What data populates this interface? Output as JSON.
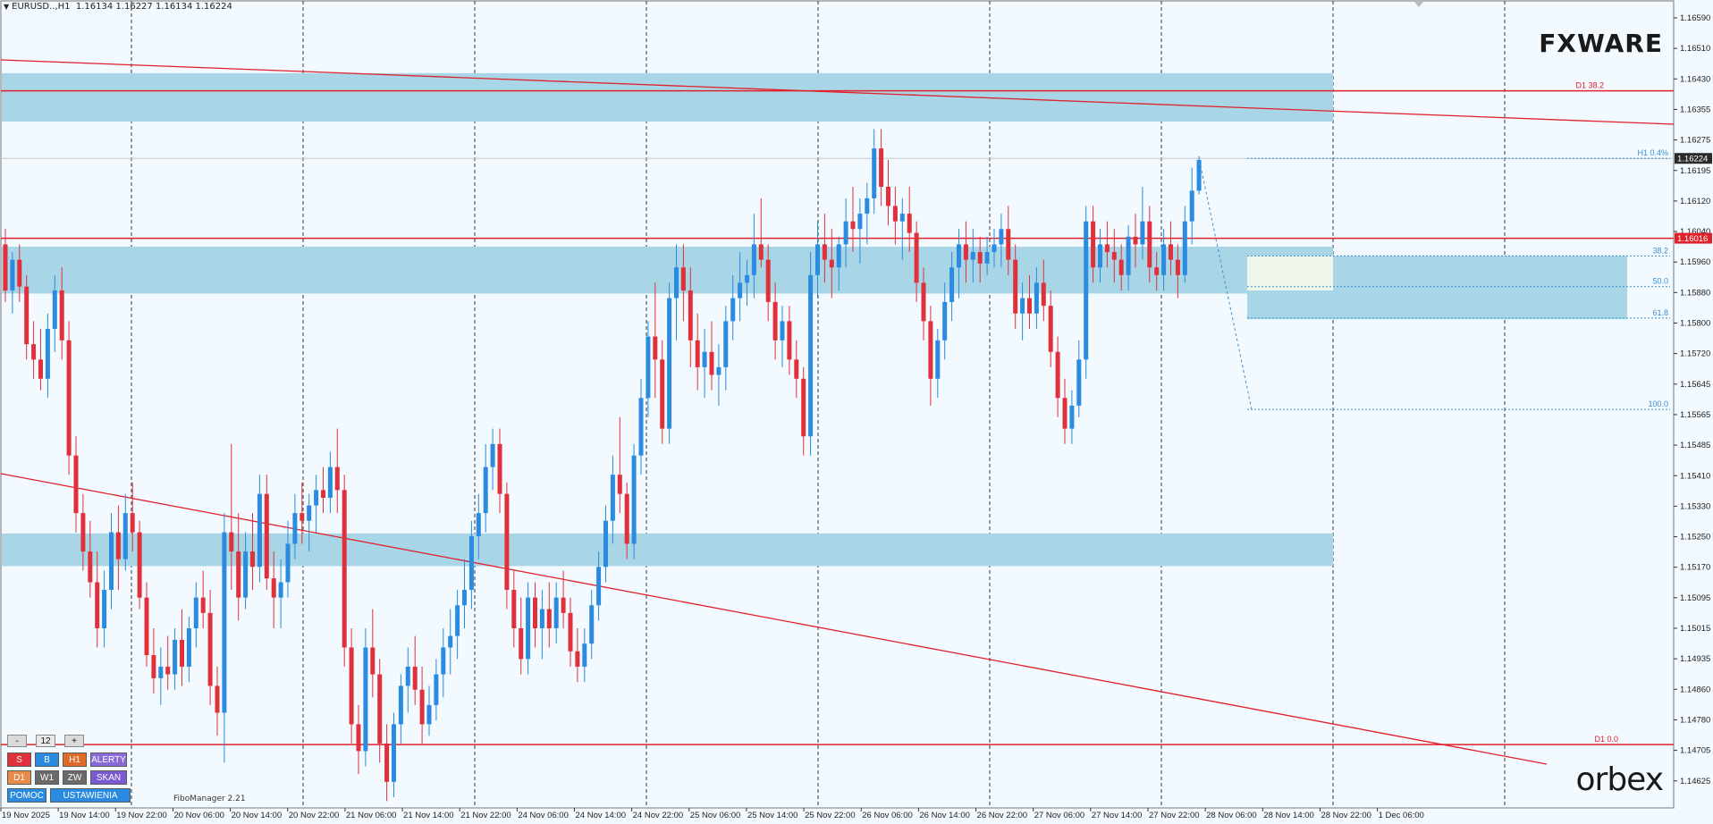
{
  "header": {
    "symbol": "EURUSD..,H1",
    "ohlc": "1.16134 1.16227 1.16134 1.16224"
  },
  "logos": {
    "top_right": "FXWARE",
    "bottom_right": "orbex"
  },
  "price_axis": {
    "labels": [
      "1.16590",
      "1.16510",
      "1.16430",
      "1.16355",
      "1.16275",
      "1.16195",
      "1.16120",
      "1.16040",
      "1.15960",
      "1.15880",
      "1.15800",
      "1.15720",
      "1.15645",
      "1.15565",
      "1.15485",
      "1.15410",
      "1.15330",
      "1.15250",
      "1.15170",
      "1.15095",
      "1.15015",
      "1.14935",
      "1.14860",
      "1.14780",
      "1.14705",
      "1.14625"
    ],
    "current_price": "1.16224",
    "current_price_color": "#2a2a2a",
    "level_price": "1.16016",
    "level_color": "#e0202a"
  },
  "time_axis": {
    "labels": [
      "19 Nov 2025",
      "19 Nov 14:00",
      "19 Nov 22:00",
      "20 Nov 06:00",
      "20 Nov 14:00",
      "20 Nov 22:00",
      "21 Nov 06:00",
      "21 Nov 14:00",
      "21 Nov 22:00",
      "24 Nov 06:00",
      "24 Nov 14:00",
      "24 Nov 22:00",
      "25 Nov 06:00",
      "25 Nov 14:00",
      "25 Nov 22:00",
      "26 Nov 06:00",
      "26 Nov 14:00",
      "26 Nov 22:00",
      "27 Nov 06:00",
      "27 Nov 14:00",
      "27 Nov 22:00",
      "28 Nov 06:00",
      "28 Nov 14:00",
      "28 Nov 22:00",
      "1 Dec 06:00"
    ]
  },
  "level_labels": {
    "d1_382": "D1 38.2",
    "h1_04": "H1 0.4%",
    "d1_00": "D1 0.0",
    "fib_382": "38.2",
    "fib_500": "50.0",
    "fib_618": "61.8",
    "fib_100": "100.0"
  },
  "colors": {
    "bull": "#2a8be0",
    "bear": "#e0303c",
    "zone": "#a9d6e6",
    "line": "#e0202a",
    "fib": "#3a8fd0"
  },
  "candles": [
    [
      1.16,
      1.1604,
      1.1585,
      1.1588
    ],
    [
      1.1588,
      1.1598,
      1.1582,
      1.1596
    ],
    [
      1.1596,
      1.16,
      1.1585,
      1.1589
    ],
    [
      1.1589,
      1.1592,
      1.157,
      1.1574
    ],
    [
      1.1574,
      1.158,
      1.1565,
      1.157
    ],
    [
      1.157,
      1.1578,
      1.1562,
      1.1565
    ],
    [
      1.1565,
      1.1582,
      1.156,
      1.1578
    ],
    [
      1.1578,
      1.1592,
      1.1572,
      1.1588
    ],
    [
      1.1588,
      1.1594,
      1.157,
      1.1575
    ],
    [
      1.1575,
      1.158,
      1.154,
      1.1545
    ],
    [
      1.1545,
      1.155,
      1.1525,
      1.153
    ],
    [
      1.153,
      1.1535,
      1.1515,
      1.152
    ],
    [
      1.152,
      1.1528,
      1.1508,
      1.1512
    ],
    [
      1.1512,
      1.152,
      1.1495,
      1.15
    ],
    [
      1.15,
      1.1515,
      1.1495,
      1.151
    ],
    [
      1.151,
      1.153,
      1.1505,
      1.1525
    ],
    [
      1.1525,
      1.1532,
      1.151,
      1.1518
    ],
    [
      1.1518,
      1.1535,
      1.1515,
      1.153
    ],
    [
      1.153,
      1.1538,
      1.152,
      1.1525
    ],
    [
      1.1525,
      1.1528,
      1.1505,
      1.1508
    ],
    [
      1.1508,
      1.1512,
      1.149,
      1.1493
    ],
    [
      1.1493,
      1.15,
      1.1483,
      1.1487
    ],
    [
      1.1487,
      1.1495,
      1.148,
      1.149
    ],
    [
      1.149,
      1.1498,
      1.1484,
      1.1488
    ],
    [
      1.1488,
      1.15,
      1.1484,
      1.1497
    ],
    [
      1.1497,
      1.1505,
      1.1485,
      1.149
    ],
    [
      1.149,
      1.1503,
      1.1486,
      1.15
    ],
    [
      1.15,
      1.1512,
      1.1495,
      1.1508
    ],
    [
      1.1508,
      1.1515,
      1.15,
      1.1504
    ],
    [
      1.1504,
      1.151,
      1.148,
      1.1485
    ],
    [
      1.1485,
      1.149,
      1.1472,
      1.1478
    ],
    [
      1.1478,
      1.153,
      1.1465,
      1.1525
    ],
    [
      1.1525,
      1.1548,
      1.151,
      1.152
    ],
    [
      1.152,
      1.153,
      1.1502,
      1.1508
    ],
    [
      1.1508,
      1.1525,
      1.1505,
      1.152
    ],
    [
      1.152,
      1.153,
      1.151,
      1.1516
    ],
    [
      1.1516,
      1.154,
      1.1512,
      1.1535
    ],
    [
      1.1535,
      1.154,
      1.151,
      1.1513
    ],
    [
      1.1513,
      1.152,
      1.15,
      1.1508
    ],
    [
      1.1508,
      1.1518,
      1.15,
      1.1512
    ],
    [
      1.1512,
      1.1528,
      1.1508,
      1.1522
    ],
    [
      1.1522,
      1.1535,
      1.1518,
      1.153
    ],
    [
      1.153,
      1.1538,
      1.1522,
      1.1528
    ],
    [
      1.1528,
      1.1535,
      1.152,
      1.1532
    ],
    [
      1.1532,
      1.154,
      1.1525,
      1.1536
    ],
    [
      1.1536,
      1.1542,
      1.153,
      1.1534
    ],
    [
      1.1534,
      1.1546,
      1.153,
      1.1542
    ],
    [
      1.1542,
      1.1552,
      1.153,
      1.1536
    ],
    [
      1.1536,
      1.154,
      1.149,
      1.1495
    ],
    [
      1.1495,
      1.15,
      1.147,
      1.1475
    ],
    [
      1.1475,
      1.148,
      1.1462,
      1.1468
    ],
    [
      1.1468,
      1.15,
      1.1464,
      1.1495
    ],
    [
      1.1495,
      1.1505,
      1.1482,
      1.1488
    ],
    [
      1.1488,
      1.1492,
      1.1465,
      1.147
    ],
    [
      1.147,
      1.1475,
      1.1455,
      1.146
    ],
    [
      1.146,
      1.1478,
      1.1456,
      1.1475
    ],
    [
      1.1475,
      1.1488,
      1.147,
      1.1485
    ],
    [
      1.1485,
      1.1495,
      1.1478,
      1.149
    ],
    [
      1.149,
      1.1498,
      1.148,
      1.1484
    ],
    [
      1.1484,
      1.149,
      1.147,
      1.1475
    ],
    [
      1.1475,
      1.1485,
      1.1472,
      1.148
    ],
    [
      1.148,
      1.1492,
      1.1476,
      1.1488
    ],
    [
      1.1488,
      1.15,
      1.1482,
      1.1495
    ],
    [
      1.1495,
      1.1505,
      1.1488,
      1.1498
    ],
    [
      1.1498,
      1.151,
      1.1492,
      1.1506
    ],
    [
      1.1506,
      1.1518,
      1.15,
      1.151
    ],
    [
      1.151,
      1.1528,
      1.1505,
      1.1524
    ],
    [
      1.1524,
      1.1535,
      1.1518,
      1.153
    ],
    [
      1.153,
      1.1548,
      1.1525,
      1.1542
    ],
    [
      1.1542,
      1.1552,
      1.1536,
      1.1548
    ],
    [
      1.1548,
      1.1552,
      1.153,
      1.1535
    ],
    [
      1.1535,
      1.1538,
      1.1505,
      1.151
    ],
    [
      1.151,
      1.1515,
      1.1495,
      1.15
    ],
    [
      1.15,
      1.1508,
      1.1488,
      1.1492
    ],
    [
      1.1492,
      1.1512,
      1.1488,
      1.1508
    ],
    [
      1.1508,
      1.1512,
      1.1495,
      1.15
    ],
    [
      1.15,
      1.151,
      1.1492,
      1.1505
    ],
    [
      1.1505,
      1.1512,
      1.1495,
      1.15
    ],
    [
      1.15,
      1.1512,
      1.1496,
      1.1508
    ],
    [
      1.1508,
      1.1515,
      1.15,
      1.1504
    ],
    [
      1.1504,
      1.1508,
      1.149,
      1.1494
    ],
    [
      1.1494,
      1.15,
      1.1486,
      1.149
    ],
    [
      1.149,
      1.15,
      1.1486,
      1.1496
    ],
    [
      1.1496,
      1.151,
      1.1492,
      1.1506
    ],
    [
      1.1506,
      1.152,
      1.1502,
      1.1516
    ],
    [
      1.1516,
      1.1532,
      1.1512,
      1.1528
    ],
    [
      1.1528,
      1.1545,
      1.1522,
      1.154
    ],
    [
      1.154,
      1.1555,
      1.153,
      1.1535
    ],
    [
      1.1535,
      1.1538,
      1.1518,
      1.1522
    ],
    [
      1.1522,
      1.1548,
      1.1518,
      1.1545
    ],
    [
      1.1545,
      1.1565,
      1.154,
      1.156
    ],
    [
      1.156,
      1.158,
      1.1555,
      1.1576
    ],
    [
      1.1576,
      1.159,
      1.156,
      1.157
    ],
    [
      1.157,
      1.1575,
      1.1548,
      1.1552
    ],
    [
      1.1552,
      1.159,
      1.1548,
      1.1586
    ],
    [
      1.1586,
      1.16,
      1.1575,
      1.1594
    ],
    [
      1.1594,
      1.16,
      1.158,
      1.1588
    ],
    [
      1.1588,
      1.1594,
      1.1568,
      1.1575
    ],
    [
      1.1575,
      1.1582,
      1.1562,
      1.1568
    ],
    [
      1.1568,
      1.1578,
      1.156,
      1.1572
    ],
    [
      1.1572,
      1.158,
      1.1562,
      1.1566
    ],
    [
      1.1566,
      1.1574,
      1.1558,
      1.1568
    ],
    [
      1.1568,
      1.1584,
      1.1562,
      1.158
    ],
    [
      1.158,
      1.1592,
      1.1575,
      1.1586
    ],
    [
      1.1586,
      1.1598,
      1.158,
      1.159
    ],
    [
      1.159,
      1.1596,
      1.1584,
      1.1592
    ],
    [
      1.1592,
      1.1608,
      1.1586,
      1.16
    ],
    [
      1.16,
      1.1612,
      1.1594,
      1.1596
    ],
    [
      1.1596,
      1.16,
      1.158,
      1.1585
    ],
    [
      1.1585,
      1.159,
      1.157,
      1.1575
    ],
    [
      1.1575,
      1.1584,
      1.1568,
      1.158
    ],
    [
      1.158,
      1.1584,
      1.1566,
      1.157
    ],
    [
      1.157,
      1.1575,
      1.156,
      1.1565
    ],
    [
      1.1565,
      1.1568,
      1.1545,
      1.155
    ],
    [
      1.155,
      1.1598,
      1.1545,
      1.1592
    ],
    [
      1.1592,
      1.1606,
      1.1586,
      1.16
    ],
    [
      1.16,
      1.1608,
      1.159,
      1.1596
    ],
    [
      1.1596,
      1.1604,
      1.1586,
      1.1594
    ],
    [
      1.1594,
      1.1602,
      1.1588,
      1.16
    ],
    [
      1.16,
      1.1612,
      1.1594,
      1.1606
    ],
    [
      1.1606,
      1.1615,
      1.1598,
      1.1604
    ],
    [
      1.1604,
      1.1612,
      1.1595,
      1.1608
    ],
    [
      1.1608,
      1.1616,
      1.16,
      1.1612
    ],
    [
      1.1612,
      1.163,
      1.1608,
      1.1625
    ],
    [
      1.1625,
      1.163,
      1.161,
      1.1615
    ],
    [
      1.1615,
      1.1622,
      1.1605,
      1.161
    ],
    [
      1.161,
      1.1615,
      1.16,
      1.1606
    ],
    [
      1.1606,
      1.1612,
      1.1596,
      1.1608
    ],
    [
      1.1608,
      1.1615,
      1.1598,
      1.1603
    ],
    [
      1.1603,
      1.1606,
      1.1585,
      1.159
    ],
    [
      1.159,
      1.1594,
      1.1575,
      1.158
    ],
    [
      1.158,
      1.1584,
      1.1558,
      1.1565
    ],
    [
      1.1565,
      1.1578,
      1.156,
      1.1575
    ],
    [
      1.1575,
      1.159,
      1.157,
      1.1585
    ],
    [
      1.1585,
      1.1598,
      1.158,
      1.1594
    ],
    [
      1.1594,
      1.1604,
      1.1586,
      1.16
    ],
    [
      1.16,
      1.1606,
      1.159,
      1.1596
    ],
    [
      1.1596,
      1.1604,
      1.159,
      1.1598
    ],
    [
      1.1598,
      1.1602,
      1.159,
      1.1595
    ],
    [
      1.1595,
      1.1602,
      1.1592,
      1.1598
    ],
    [
      1.1598,
      1.1604,
      1.1594,
      1.16
    ],
    [
      1.16,
      1.1608,
      1.1594,
      1.1604
    ],
    [
      1.1604,
      1.161,
      1.1592,
      1.1596
    ],
    [
      1.1596,
      1.16,
      1.1578,
      1.1582
    ],
    [
      1.1582,
      1.159,
      1.1575,
      1.1586
    ],
    [
      1.1586,
      1.1592,
      1.1578,
      1.1582
    ],
    [
      1.1582,
      1.1594,
      1.1578,
      1.159
    ],
    [
      1.159,
      1.1596,
      1.158,
      1.1584
    ],
    [
      1.1584,
      1.1588,
      1.1568,
      1.1572
    ],
    [
      1.1572,
      1.1576,
      1.1555,
      1.156
    ],
    [
      1.156,
      1.1565,
      1.1548,
      1.1552
    ],
    [
      1.1552,
      1.1562,
      1.1548,
      1.1558
    ],
    [
      1.1558,
      1.1575,
      1.1555,
      1.157
    ],
    [
      1.157,
      1.161,
      1.1565,
      1.1606
    ],
    [
      1.1606,
      1.161,
      1.159,
      1.1594
    ],
    [
      1.1594,
      1.1604,
      1.159,
      1.16
    ],
    [
      1.16,
      1.1606,
      1.1594,
      1.1598
    ],
    [
      1.1598,
      1.1604,
      1.159,
      1.1596
    ],
    [
      1.1596,
      1.16,
      1.1588,
      1.1592
    ],
    [
      1.1592,
      1.1605,
      1.1588,
      1.1602
    ],
    [
      1.1602,
      1.1608,
      1.1594,
      1.16
    ],
    [
      1.16,
      1.1615,
      1.1596,
      1.1606
    ],
    [
      1.1606,
      1.161,
      1.159,
      1.1594
    ],
    [
      1.1594,
      1.1598,
      1.1588,
      1.1592
    ],
    [
      1.1592,
      1.1604,
      1.1588,
      1.16
    ],
    [
      1.16,
      1.1606,
      1.1592,
      1.1596
    ],
    [
      1.1596,
      1.16,
      1.1586,
      1.1592
    ],
    [
      1.1592,
      1.161,
      1.159,
      1.1606
    ],
    [
      1.1606,
      1.162,
      1.16,
      1.1614
    ],
    [
      1.1614,
      1.1623,
      1.1613,
      1.1622
    ]
  ],
  "panel": {
    "zoom_minus": "-",
    "zoom_value": "12",
    "zoom_plus": "+",
    "rows": [
      [
        {
          "label": "S",
          "color": "#e0303c"
        },
        {
          "label": "B",
          "color": "#2a8be0"
        },
        {
          "label": "H1",
          "color": "#e06a28"
        },
        {
          "label": "ALERTY",
          "color": "#8a6ad8"
        }
      ],
      [
        {
          "label": "D1",
          "color": "#e88a48"
        },
        {
          "label": "W1",
          "color": "#6a6a6a"
        },
        {
          "label": "ZW",
          "color": "#6a6a6a"
        },
        {
          "label": "SKAN",
          "color": "#7a5ad0"
        }
      ],
      [
        {
          "label": "POMOC",
          "color": "#2a8be0"
        },
        {
          "label": "USTAWIENIA",
          "color": "#2a8be0"
        }
      ]
    ],
    "fibo_manager": "FiboManager 2.21"
  }
}
